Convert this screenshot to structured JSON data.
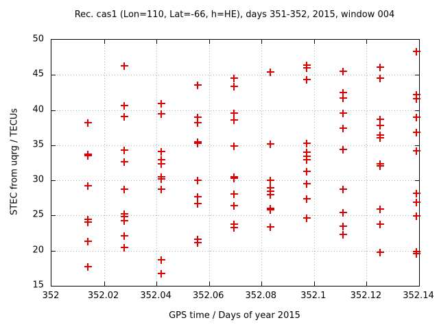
{
  "chart_data": {
    "type": "scatter",
    "title": "Rec. cas1 (Lon=110, Lat=-66, h=HE), days 351-352, 2015, window 004",
    "xlabel": "GPS time / Days of year 2015",
    "ylabel": "STEC from uqrg / TECUs",
    "xlim": [
      352,
      352.14
    ],
    "ylim": [
      15,
      50
    ],
    "x_ticks": {
      "values": [
        352,
        352.02,
        352.04,
        352.06,
        352.08,
        352.1,
        352.12,
        352.14
      ],
      "labels": [
        "352",
        "352.02",
        "352.04",
        "352.06",
        "352.08",
        "352.1",
        "352.12",
        "352.14"
      ]
    },
    "y_ticks": {
      "values": [
        15,
        20,
        25,
        30,
        35,
        40,
        45,
        50
      ],
      "labels": [
        "15",
        "20",
        "25",
        "30",
        "35",
        "40",
        "45",
        "50"
      ]
    },
    "grid": true,
    "legend": "none",
    "marker": "plus",
    "marker_color": "#dd0000",
    "grid_color": "#a6a6a6",
    "points": [
      [
        352.0139,
        38.2
      ],
      [
        352.0139,
        33.7
      ],
      [
        352.0139,
        33.5
      ],
      [
        352.0139,
        29.2
      ],
      [
        352.0139,
        24.5
      ],
      [
        352.0139,
        24.1
      ],
      [
        352.0139,
        21.3
      ],
      [
        352.0139,
        17.7
      ],
      [
        352.0278,
        46.3
      ],
      [
        352.0278,
        40.6
      ],
      [
        352.0278,
        39.1
      ],
      [
        352.0278,
        34.3
      ],
      [
        352.0278,
        32.6
      ],
      [
        352.0278,
        28.7
      ],
      [
        352.0278,
        25.2
      ],
      [
        352.0278,
        24.8
      ],
      [
        352.0278,
        24.3
      ],
      [
        352.0278,
        22.1
      ],
      [
        352.0278,
        20.5
      ],
      [
        352.0417,
        40.9
      ],
      [
        352.0417,
        39.5
      ],
      [
        352.0417,
        34.1
      ],
      [
        352.0417,
        32.9
      ],
      [
        352.0417,
        32.4
      ],
      [
        352.0417,
        30.5
      ],
      [
        352.0417,
        30.2
      ],
      [
        352.0417,
        28.7
      ],
      [
        352.0417,
        18.7
      ],
      [
        352.0417,
        16.8
      ],
      [
        352.0556,
        43.6
      ],
      [
        352.0556,
        39.0
      ],
      [
        352.0556,
        38.2
      ],
      [
        352.0556,
        35.5
      ],
      [
        352.0556,
        35.3
      ],
      [
        352.0556,
        30.0
      ],
      [
        352.0556,
        27.7
      ],
      [
        352.0556,
        26.7
      ],
      [
        352.0556,
        21.6
      ],
      [
        352.0556,
        21.1
      ],
      [
        352.0694,
        44.5
      ],
      [
        352.0694,
        43.4
      ],
      [
        352.0694,
        39.6
      ],
      [
        352.0694,
        38.6
      ],
      [
        352.0694,
        34.9
      ],
      [
        352.0694,
        30.5
      ],
      [
        352.0694,
        30.3
      ],
      [
        352.0694,
        28.1
      ],
      [
        352.0694,
        26.4
      ],
      [
        352.0694,
        23.8
      ],
      [
        352.0694,
        23.3
      ],
      [
        352.0833,
        45.4
      ],
      [
        352.0833,
        35.2
      ],
      [
        352.0833,
        30.0
      ],
      [
        352.0833,
        28.9
      ],
      [
        352.0833,
        28.5
      ],
      [
        352.0833,
        28.0
      ],
      [
        352.0833,
        26.0
      ],
      [
        352.0833,
        25.8
      ],
      [
        352.0833,
        23.4
      ],
      [
        352.0972,
        46.4
      ],
      [
        352.0972,
        46.0
      ],
      [
        352.0972,
        44.3
      ],
      [
        352.0972,
        35.3
      ],
      [
        352.0972,
        34.0
      ],
      [
        352.0972,
        33.4
      ],
      [
        352.0972,
        32.9
      ],
      [
        352.0972,
        31.3
      ],
      [
        352.0972,
        29.5
      ],
      [
        352.0972,
        27.4
      ],
      [
        352.0972,
        24.7
      ],
      [
        352.1111,
        45.5
      ],
      [
        352.1111,
        42.5
      ],
      [
        352.1111,
        41.7
      ],
      [
        352.1111,
        39.6
      ],
      [
        352.1111,
        37.4
      ],
      [
        352.1111,
        34.4
      ],
      [
        352.1111,
        28.7
      ],
      [
        352.1111,
        25.4
      ],
      [
        352.1111,
        23.5
      ],
      [
        352.1111,
        22.3
      ],
      [
        352.125,
        46.1
      ],
      [
        352.125,
        44.5
      ],
      [
        352.125,
        38.7
      ],
      [
        352.125,
        37.8
      ],
      [
        352.125,
        36.4
      ],
      [
        352.125,
        36.1
      ],
      [
        352.125,
        32.4
      ],
      [
        352.125,
        32.1
      ],
      [
        352.125,
        25.9
      ],
      [
        352.125,
        23.8
      ],
      [
        352.125,
        19.8
      ],
      [
        352.1389,
        48.3
      ],
      [
        352.1389,
        42.2
      ],
      [
        352.1389,
        41.6
      ],
      [
        352.1389,
        39.0
      ],
      [
        352.1389,
        36.8
      ],
      [
        352.1389,
        34.2
      ],
      [
        352.1389,
        28.2
      ],
      [
        352.1389,
        26.9
      ],
      [
        352.1389,
        24.9
      ],
      [
        352.1389,
        19.9
      ],
      [
        352.1389,
        19.6
      ]
    ]
  }
}
